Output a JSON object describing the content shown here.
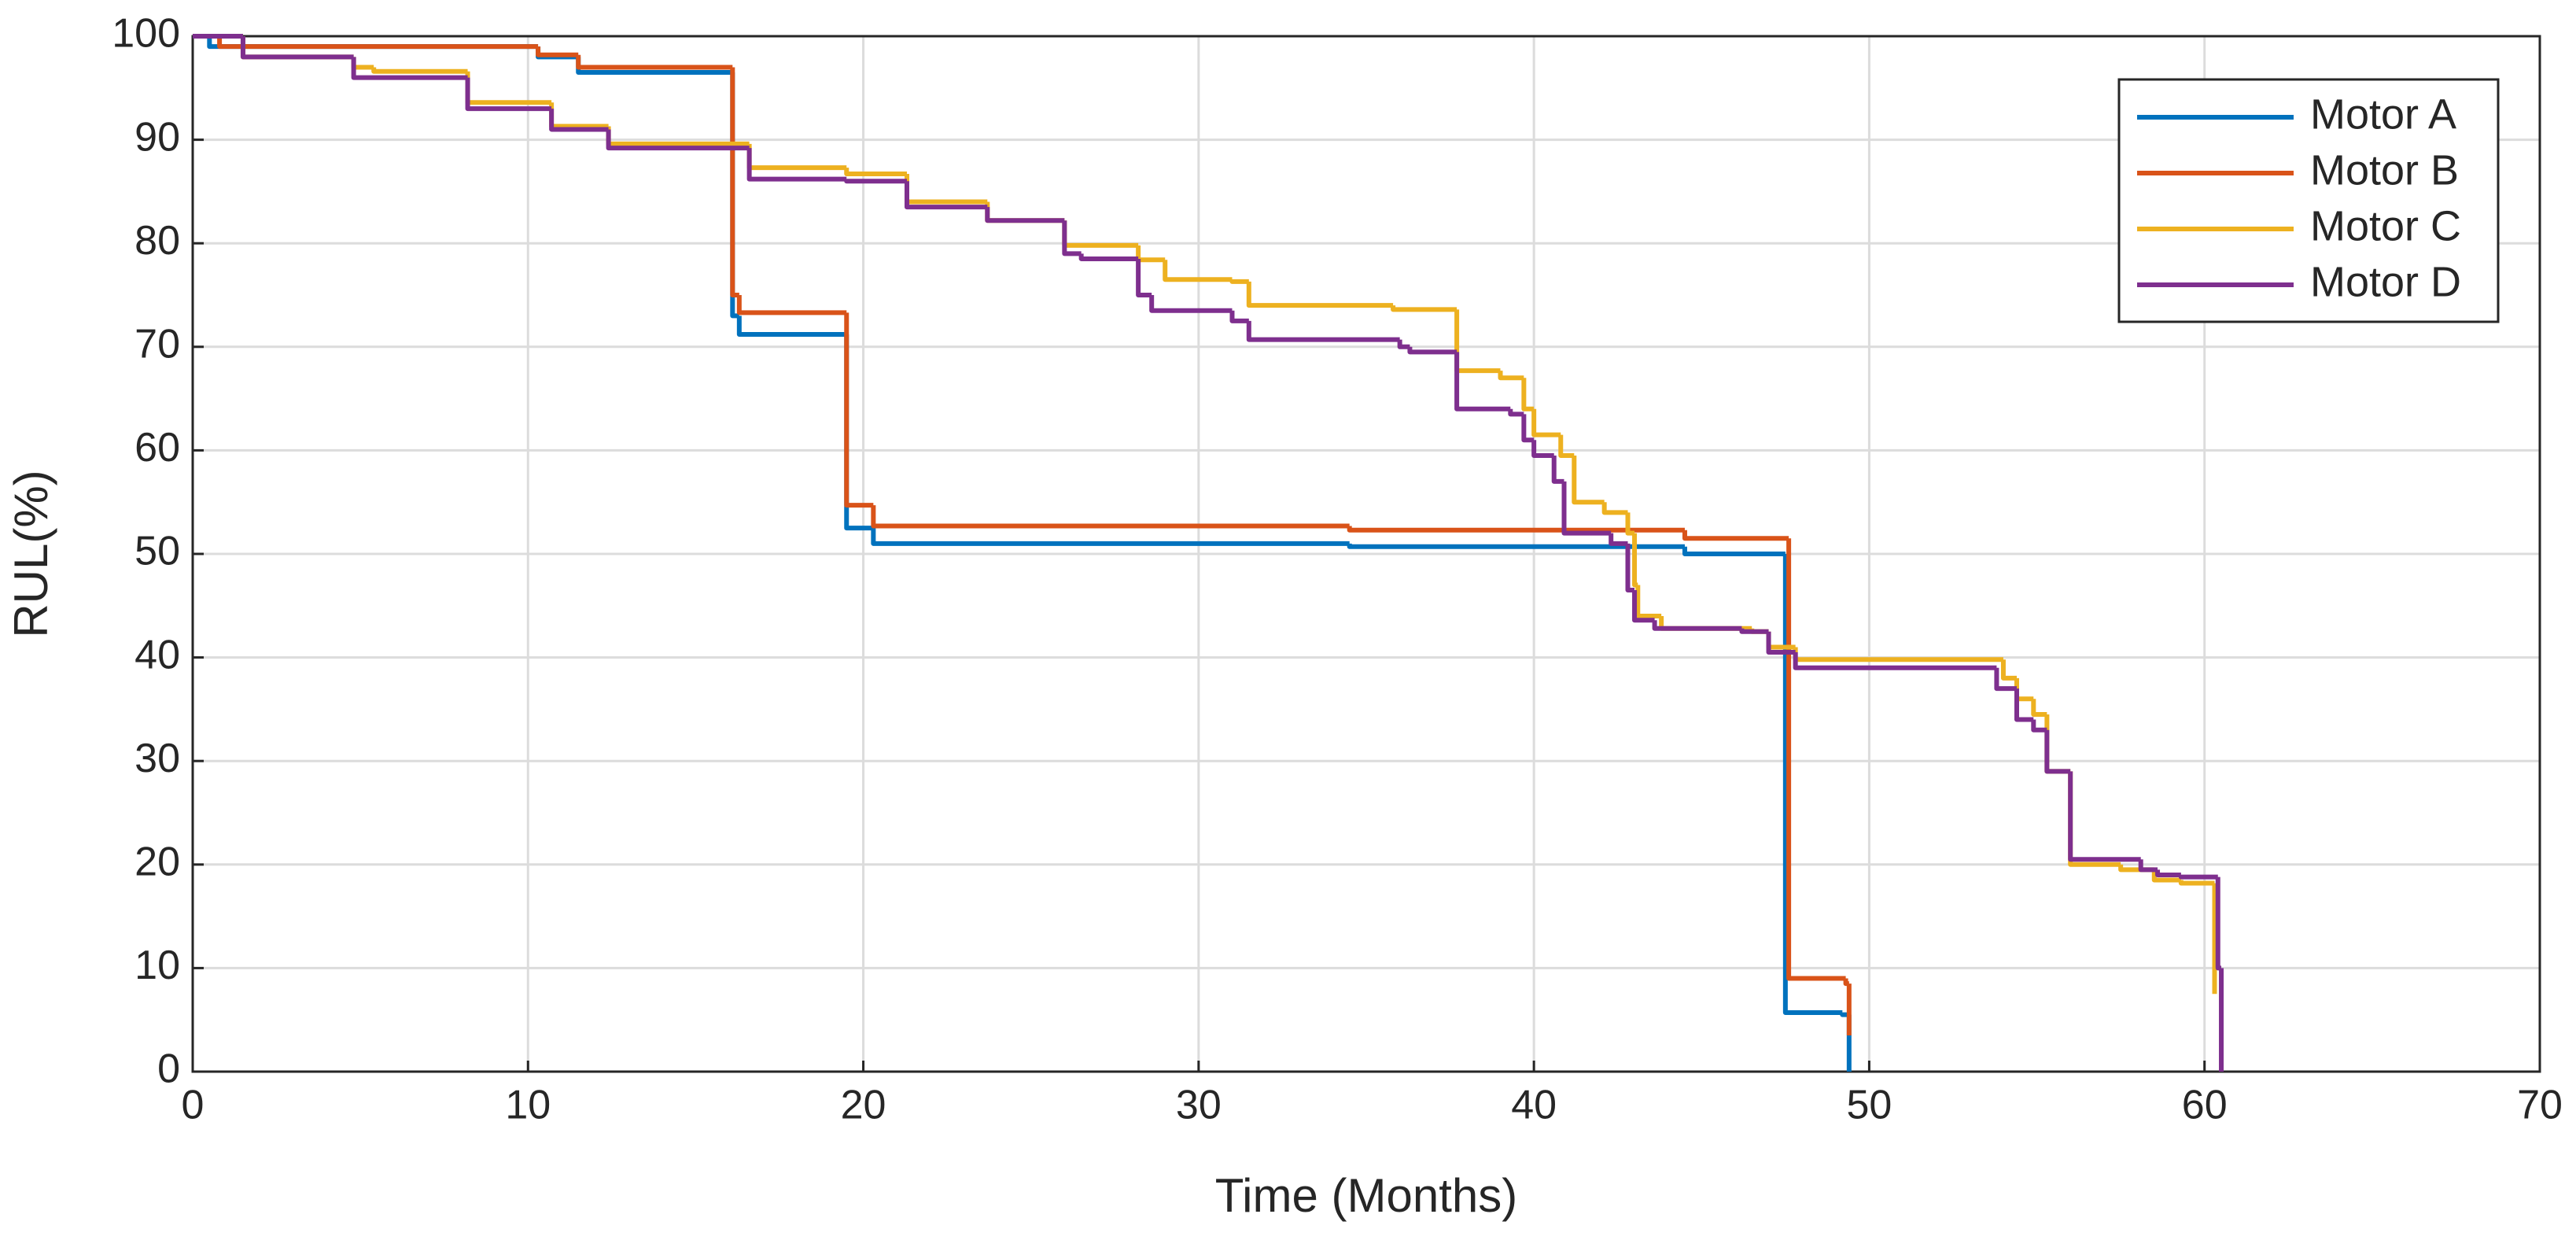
{
  "chart_data": {
    "type": "line",
    "step": true,
    "xlabel": "Time (Months)",
    "ylabel": "RUL(%)",
    "xlim": [
      0,
      70
    ],
    "ylim": [
      0,
      100
    ],
    "xticks": [
      0,
      10,
      20,
      30,
      40,
      50,
      60,
      70
    ],
    "yticks": [
      0,
      10,
      20,
      30,
      40,
      50,
      60,
      70,
      80,
      90,
      100
    ],
    "grid": true,
    "legend": "upper right",
    "series": [
      {
        "name": "Motor A",
        "color": "#0072BD",
        "x": [
          0,
          0.5,
          10.3,
          11.5,
          16.1,
          16.3,
          19.5,
          20.3,
          34.5,
          44.5,
          47.5,
          49.2,
          49.4
        ],
        "values": [
          100,
          99,
          98,
          96.5,
          73,
          71.2,
          52.5,
          51,
          50.7,
          50,
          5.7,
          5.5,
          0
        ]
      },
      {
        "name": "Motor B",
        "color": "#D95319",
        "x": [
          0,
          0.8,
          10.3,
          11.5,
          16.1,
          16.3,
          19.5,
          20.3,
          34.5,
          44.5,
          47.6,
          49.3,
          49.4
        ],
        "values": [
          100,
          99,
          98.2,
          97,
          75,
          73.3,
          54.7,
          52.7,
          52.3,
          51.5,
          9,
          8.5,
          3.5
        ]
      },
      {
        "name": "Motor C",
        "color": "#EDB120",
        "x": [
          0,
          1.5,
          4.8,
          5.4,
          8.2,
          10.7,
          12.4,
          16.6,
          19.5,
          21.3,
          23.7,
          26,
          28.2,
          29,
          31,
          31.5,
          35.8,
          37.7,
          39,
          39.7,
          40,
          40.8,
          41.2,
          42.1,
          42.8,
          43,
          43.1,
          43.8,
          46.5,
          47,
          47.8,
          54,
          54.4,
          54.9,
          55.3,
          56,
          57.5,
          58.5,
          59.3,
          60.3
        ],
        "values": [
          100,
          98,
          97,
          96.6,
          93.6,
          91.3,
          89.6,
          87.3,
          86.7,
          84,
          82.2,
          79.8,
          78.4,
          76.5,
          76.3,
          74,
          73.6,
          67.7,
          67,
          64,
          61.5,
          59.5,
          55,
          54,
          52,
          47,
          44,
          42.8,
          42.5,
          41,
          39.8,
          38,
          36,
          34.5,
          29,
          20,
          19.5,
          18.5,
          18.2,
          7.5
        ]
      },
      {
        "name": "Motor D",
        "color": "#7E2F8E",
        "x": [
          0,
          1.5,
          4.8,
          8.2,
          10.7,
          12.4,
          16.6,
          19.5,
          21.3,
          23.7,
          26,
          26.5,
          28.2,
          28.6,
          31,
          31.5,
          36,
          36.3,
          37.7,
          39.3,
          39.7,
          40,
          40.6,
          40.9,
          42.3,
          42.8,
          43,
          43.6,
          46.2,
          47,
          47.8,
          53.8,
          54.4,
          54.9,
          55.3,
          56,
          58.1,
          58.6,
          59.3,
          60.4,
          60.5
        ],
        "values": [
          100,
          98,
          96,
          93,
          91,
          89.2,
          86.2,
          86,
          83.5,
          82.2,
          79,
          78.5,
          75,
          73.5,
          72.5,
          70.7,
          70,
          69.5,
          64,
          63.5,
          61,
          59.5,
          57,
          52,
          51,
          46.5,
          43.6,
          42.8,
          42.5,
          40.5,
          39,
          37,
          34,
          33,
          29,
          20.5,
          19.5,
          19,
          18.8,
          10,
          0
        ]
      }
    ]
  }
}
